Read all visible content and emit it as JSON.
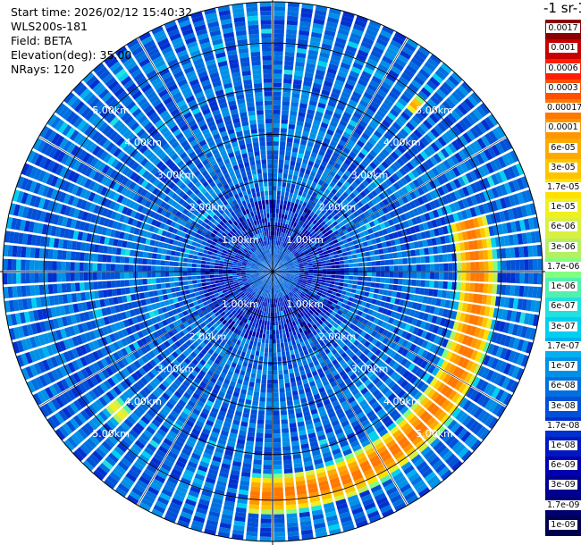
{
  "header": {
    "start_time": "Start time: 2026/02/12 15:40:32",
    "instrument": "WLS200s-181",
    "field": "Field: BETA",
    "elevation": "Elevation(deg): 35.00",
    "nrays": "NRays: 120"
  },
  "colorbar": {
    "title": "-1 sr-1",
    "labels": [
      "0.0017",
      "0.001",
      "0.0006",
      "0.0003",
      "0.00017",
      "0.0001",
      "6e-05",
      "3e-05",
      "1.7e-05",
      "1e-05",
      "6e-06",
      "3e-06",
      "1.7e-06",
      "1e-06",
      "6e-07",
      "3e-07",
      "1.7e-07",
      "1e-07",
      "6e-08",
      "3e-08",
      "1.7e-08",
      "1e-08",
      "6e-09",
      "3e-09",
      "1.7e-09",
      "1e-09"
    ],
    "colors": [
      "#8b0000",
      "#c80000",
      "#ff1e00",
      "#ff5000",
      "#ff7800",
      "#ff9600",
      "#ffaa00",
      "#ffc400",
      "#ffe000",
      "#f0f020",
      "#d8f040",
      "#b4f060",
      "#80ff80",
      "#50f0b0",
      "#20e0e0",
      "#00d0f0",
      "#00b0f0",
      "#0090e8",
      "#0070e0",
      "#0050d8",
      "#0030d0",
      "#0018c0",
      "#0000b0",
      "#000090",
      "#000070",
      "#000050"
    ]
  },
  "chart_data": {
    "type": "heatmap",
    "projection": "polar PPI",
    "field": "BETA",
    "elevation_deg": 35.0,
    "n_rays": 120,
    "range_rings_km": [
      1,
      2,
      3,
      4,
      5
    ],
    "ring_labels": [
      "1.00km",
      "2.00km",
      "3.00km",
      "4.00km",
      "5.00km"
    ],
    "max_range_km": 5.9,
    "scale": "log",
    "value_range": [
      1e-09,
      0.0017
    ],
    "background_level": 6e-08,
    "features": [
      {
        "description": "enhanced backscatter arc",
        "azimuth_deg": [
          75,
          185
        ],
        "range_km": [
          4.2,
          5.1
        ],
        "peak_value": 0.0003
      },
      {
        "description": "short echo segment",
        "azimuth_deg": [
          225,
          232
        ],
        "range_km": [
          4.3,
          4.8
        ],
        "peak_value": 1.7e-05
      },
      {
        "description": "short echo segment",
        "azimuth_deg": [
          38,
          41
        ],
        "range_km": [
          4.6,
          5.0
        ],
        "peak_value": 0.0001
      }
    ]
  }
}
